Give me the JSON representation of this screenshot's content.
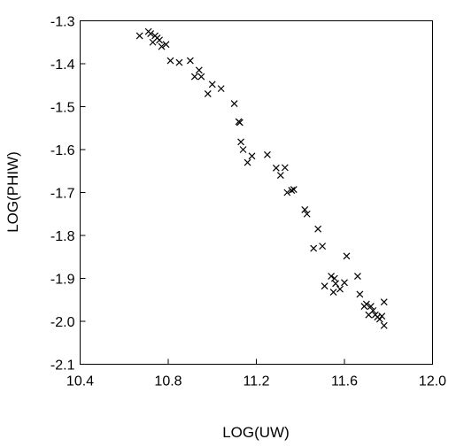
{
  "chart_data": {
    "type": "scatter",
    "title": "",
    "xlabel": "LOG(UW)",
    "ylabel": "LOG(PHIW)",
    "xlim": [
      10.4,
      12.0
    ],
    "ylim": [
      -2.1,
      -1.3
    ],
    "grid": false,
    "marker": "x",
    "xticks": [
      10.4,
      10.8,
      11.2,
      11.6,
      12.0
    ],
    "xtick_labels": [
      "10.4",
      "10.8",
      "11.2",
      "11.6",
      "12.0"
    ],
    "yticks": [
      -1.3,
      -1.4,
      -1.5,
      -1.6,
      -1.7,
      -1.8,
      -1.9,
      -2.0,
      -2.1
    ],
    "ytick_labels": [
      "-1.3",
      "-1.4",
      "-1.5",
      "-1.6",
      "-1.7",
      "-1.8",
      "-1.9",
      "-2.0",
      "-2.1"
    ],
    "points": [
      [
        10.67,
        -1.335
      ],
      [
        10.71,
        -1.325
      ],
      [
        10.72,
        -1.33
      ],
      [
        10.73,
        -1.35
      ],
      [
        10.74,
        -1.335
      ],
      [
        10.75,
        -1.34
      ],
      [
        10.76,
        -1.345
      ],
      [
        10.77,
        -1.36
      ],
      [
        10.79,
        -1.355
      ],
      [
        10.81,
        -1.393
      ],
      [
        10.85,
        -1.397
      ],
      [
        10.9,
        -1.393
      ],
      [
        10.92,
        -1.43
      ],
      [
        10.94,
        -1.415
      ],
      [
        10.95,
        -1.43
      ],
      [
        10.98,
        -1.47
      ],
      [
        11.0,
        -1.448
      ],
      [
        11.04,
        -1.458
      ],
      [
        11.1,
        -1.493
      ],
      [
        11.12,
        -1.535
      ],
      [
        11.125,
        -1.537
      ],
      [
        11.13,
        -1.582
      ],
      [
        11.14,
        -1.6
      ],
      [
        11.16,
        -1.63
      ],
      [
        11.18,
        -1.615
      ],
      [
        11.25,
        -1.612
      ],
      [
        11.29,
        -1.643
      ],
      [
        11.31,
        -1.66
      ],
      [
        11.33,
        -1.642
      ],
      [
        11.34,
        -1.7
      ],
      [
        11.36,
        -1.695
      ],
      [
        11.37,
        -1.693
      ],
      [
        11.42,
        -1.74
      ],
      [
        11.43,
        -1.75
      ],
      [
        11.46,
        -1.83
      ],
      [
        11.48,
        -1.785
      ],
      [
        11.5,
        -1.825
      ],
      [
        11.51,
        -1.918
      ],
      [
        11.54,
        -1.895
      ],
      [
        11.55,
        -1.932
      ],
      [
        11.555,
        -1.9
      ],
      [
        11.56,
        -1.912
      ],
      [
        11.58,
        -1.925
      ],
      [
        11.6,
        -1.91
      ],
      [
        11.61,
        -1.848
      ],
      [
        11.66,
        -1.895
      ],
      [
        11.67,
        -1.937
      ],
      [
        11.69,
        -1.965
      ],
      [
        11.7,
        -1.96
      ],
      [
        11.71,
        -1.985
      ],
      [
        11.72,
        -1.965
      ],
      [
        11.73,
        -1.975
      ],
      [
        11.74,
        -1.985
      ],
      [
        11.75,
        -1.99
      ],
      [
        11.76,
        -1.995
      ],
      [
        11.77,
        -1.988
      ],
      [
        11.78,
        -1.955
      ],
      [
        11.78,
        -2.01
      ]
    ]
  }
}
